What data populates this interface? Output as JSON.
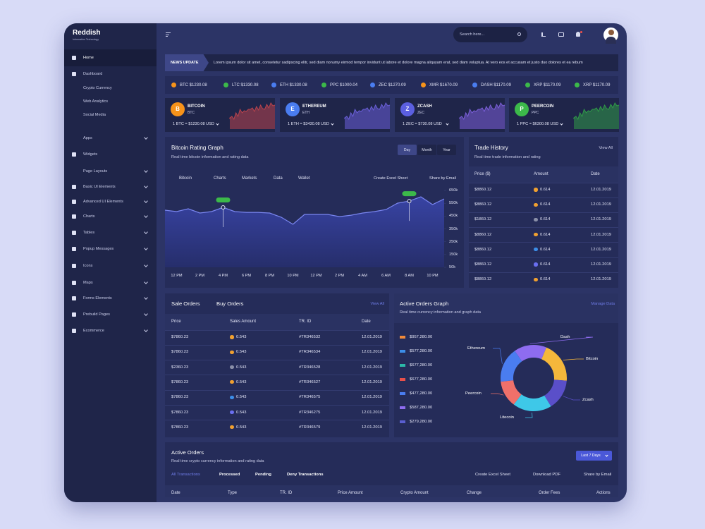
{
  "sidebar": {
    "brand": "Reddish",
    "tagline": "Information Technology",
    "menu": [
      {
        "label": "Home",
        "icon": true,
        "submenu": false,
        "active": true
      },
      {
        "label": "Dashboard",
        "icon": true,
        "submenu": false,
        "active": false
      },
      {
        "label": "Crypto Currency",
        "icon": false,
        "submenu": false,
        "active": false
      },
      {
        "label": "Web Analytics",
        "icon": false,
        "submenu": false,
        "active": false
      },
      {
        "label": "Social Media",
        "icon": false,
        "submenu": false,
        "active": false
      },
      {
        "label": "Apps",
        "icon": false,
        "submenu": true,
        "active": false
      },
      {
        "label": "Widgets",
        "icon": true,
        "submenu": false,
        "active": false
      },
      {
        "label": "Page Layouts",
        "icon": false,
        "submenu": true,
        "active": false
      },
      {
        "label": "Basic UI Elements",
        "icon": true,
        "submenu": true,
        "active": false
      },
      {
        "label": "Advanced UI Elements",
        "icon": true,
        "submenu": true,
        "active": false
      },
      {
        "label": "Charts",
        "icon": true,
        "submenu": true,
        "active": false
      },
      {
        "label": "Tables",
        "icon": true,
        "submenu": true,
        "active": false
      },
      {
        "label": "Popup Messages",
        "icon": true,
        "submenu": true,
        "active": false
      },
      {
        "label": "Icons",
        "icon": true,
        "submenu": true,
        "active": false
      },
      {
        "label": "Maps",
        "icon": true,
        "submenu": true,
        "active": false
      },
      {
        "label": "Forms Elements",
        "icon": true,
        "submenu": true,
        "active": false
      },
      {
        "label": "Prebuild Pages",
        "icon": true,
        "submenu": true,
        "active": false
      },
      {
        "label": "Ecommerce",
        "icon": true,
        "submenu": true,
        "active": false
      }
    ]
  },
  "topbar": {
    "search_placeholder": "Search here..."
  },
  "news": {
    "label": "NEWS UPDATE",
    "text": "Lorem ipsum dolor sit amet, consetetur sadipscing elitr, sed diam nonumy eirmod tempor invidunt ut labore et dolore magna aliquyam erat, sed diam voluptua. At vero eos et accusam et justo duo dolores et ea rebum"
  },
  "ticker": [
    {
      "text": "BTC $1230.08",
      "color": "#f7931a"
    },
    {
      "text": "LTC $1330.08",
      "color": "#3cb94a"
    },
    {
      "text": "ETH $1330.08",
      "color": "#4a7df0"
    },
    {
      "text": "PPC $1000.04",
      "color": "#3cb94a"
    },
    {
      "text": "ZEC $1270.09",
      "color": "#4a7df0"
    },
    {
      "text": "XMR $1670.09",
      "color": "#f7931a"
    },
    {
      "text": "DASH $1170.09",
      "color": "#4a7df0"
    },
    {
      "text": "XRP $1170.09",
      "color": "#3cb94a"
    },
    {
      "text": "XRP $1170.09",
      "color": "#3cb94a"
    }
  ],
  "coins": [
    {
      "icon": "B",
      "name": "BITCOIN",
      "code": "BTC",
      "rate": "1 BTC = $1230.08 USD",
      "color": "#f7931a",
      "spark": "#b8434c"
    },
    {
      "icon": "E",
      "name": "ETHEREUM",
      "code": "ETH",
      "rate": "1 ETH = $3430.08 USD",
      "color": "#4a7df0",
      "spark": "#6a5fd8"
    },
    {
      "icon": "Z",
      "name": "ZCASH",
      "code": "ZEC",
      "rate": "1 ZEC = $730.08 USD",
      "color": "#5b5fe0",
      "spark": "#7b5fd8"
    },
    {
      "icon": "P",
      "name": "PEERCOIN",
      "code": "PPC",
      "rate": "1 PPC = $6300.08 USD",
      "color": "#3cb94a",
      "spark": "#2f9a47"
    }
  ],
  "rating_panel": {
    "title": "Bitcoin Rating Graph",
    "subtitle": "Real time bitcoin information and rating data",
    "ranges": [
      "Day",
      "Month",
      "Year"
    ],
    "tabs": [
      "Bitcoin",
      "Charts",
      "Markets",
      "Data",
      "Wallet"
    ],
    "actions": [
      "Create Excel Sheet",
      "Share by Email"
    ]
  },
  "trade_history": {
    "title": "Trade History",
    "subtitle": "Real time trade information and rating",
    "link": "View All",
    "columns": [
      "Price ($)",
      "Amount",
      "Date"
    ],
    "rows": [
      {
        "price": "$8860.12",
        "amount": "0.614",
        "date": "12.01.2019",
        "dot": "#f0a030"
      },
      {
        "price": "$8860.12",
        "amount": "0.614",
        "date": "12.01.2019",
        "dot": "#f0a030"
      },
      {
        "price": "$1860.12",
        "amount": "0.614",
        "date": "12.01.2019",
        "dot": "#8a8fa8"
      },
      {
        "price": "$8860.12",
        "amount": "0.614",
        "date": "12.01.2019",
        "dot": "#f0a030"
      },
      {
        "price": "$8860.12",
        "amount": "0.614",
        "date": "12.01.2019",
        "dot": "#3c8ee8"
      },
      {
        "price": "$8860.12",
        "amount": "0.614",
        "date": "12.01.2019",
        "dot": "#6a6ff0"
      },
      {
        "price": "$8860.12",
        "amount": "0.614",
        "date": "12.01.2019",
        "dot": "#f0a030"
      }
    ]
  },
  "orders": {
    "tabs": [
      "Sale Orders",
      "Buy Orders"
    ],
    "link": "View All",
    "columns": [
      "Price",
      "Sales Amount",
      "TR. ID",
      "Date"
    ],
    "rows": [
      {
        "price": "$7860.23",
        "amount": "0.543",
        "id": "#TR346532",
        "date": "12.01.2019",
        "dot": "#f0a030"
      },
      {
        "price": "$7860.23",
        "amount": "0.543",
        "id": "#TR346534",
        "date": "12.01.2019",
        "dot": "#f0a030"
      },
      {
        "price": "$2360.23",
        "amount": "0.543",
        "id": "#TR346528",
        "date": "12.01.2019",
        "dot": "#8a8fa8"
      },
      {
        "price": "$7860.23",
        "amount": "0.543",
        "id": "#TR346527",
        "date": "12.01.2019",
        "dot": "#f0a030"
      },
      {
        "price": "$7860.23",
        "amount": "0.543",
        "id": "#TR346575",
        "date": "12.01.2019",
        "dot": "#3c8ee8"
      },
      {
        "price": "$7860.23",
        "amount": "0.543",
        "id": "#TR346275",
        "date": "12.01.2019",
        "dot": "#6a6ff0"
      },
      {
        "price": "$7860.23",
        "amount": "0.543",
        "id": "#TR346579",
        "date": "12.01.2019",
        "dot": "#f0a030"
      }
    ]
  },
  "orders_graph_panel": {
    "title": "Active Orders Graph",
    "subtitle": "Real time currency information and graph data",
    "link": "Manage Data",
    "legend": [
      {
        "amount": "$957,280.00",
        "color": "#f08a3a"
      },
      {
        "amount": "$577,280.00",
        "color": "#3c8ee8"
      },
      {
        "amount": "$677,280.00",
        "color": "#2cb8a8"
      },
      {
        "amount": "$677,280.00",
        "color": "#e8504a"
      },
      {
        "amount": "$477,280.00",
        "color": "#4a7df0"
      },
      {
        "amount": "$587,280.00",
        "color": "#8e6cf0"
      },
      {
        "amount": "$279,280.00",
        "color": "#5a5fd0"
      }
    ]
  },
  "active_orders": {
    "title": "Active Orders",
    "subtitle": "Real time crypto currency information and rating data",
    "button": "Last 7 Days",
    "tabs": [
      "All Transactions",
      "Processed",
      "Pending",
      "Deny Transactions"
    ],
    "actions": [
      "Create Excel Sheet",
      "Download PDF",
      "Share by Email"
    ],
    "columns": [
      "Date",
      "Type",
      "TR. ID",
      "Price Amount",
      "Crypto Amount",
      "Change",
      "Order Fees",
      "Actions"
    ]
  },
  "chart_data": [
    {
      "type": "line",
      "categories": [
        null,
        "12 PM",
        null,
        "2 PM",
        null,
        "4 PM",
        null,
        "6 PM",
        null,
        "8 PM",
        null,
        "10 PM",
        null,
        "12 PM",
        null,
        "2 PM",
        null,
        "4 AM",
        null,
        "6 AM",
        null,
        "8 AM",
        null,
        "10 PM",
        null
      ],
      "values": [
        496000,
        485000,
        507000,
        474000,
        485000,
        518000,
        485000,
        479000,
        479000,
        474000,
        441000,
        386000,
        463000,
        463000,
        463000,
        446000,
        457000,
        474000,
        485000,
        501000,
        551000,
        567000,
        600000,
        540000,
        584000
      ],
      "color": "#7a86f0",
      "ylim": [
        50000,
        650000
      ],
      "yticks": [
        {
          "value": 650000,
          "label": "650k"
        },
        {
          "value": 550000,
          "label": "550k"
        },
        {
          "value": 450000,
          "label": "450k"
        },
        {
          "value": 350000,
          "label": "350k"
        },
        {
          "value": 250000,
          "label": "250k"
        },
        {
          "value": 150000,
          "label": "150k"
        },
        {
          "value": 50000,
          "label": "50k"
        }
      ]
    },
    {
      "type": "pie",
      "categories": [
        "Dash",
        "Bitcoin",
        "Zcash",
        "Litecoin",
        "Peercoin",
        "Ethereum"
      ],
      "values": [
        16,
        20,
        15,
        19,
        13,
        17
      ],
      "colors": [
        "#8e6cf0",
        "#f5b73b",
        "#5a4fc9",
        "#3ec8e8",
        "#f0706a",
        "#4a7df0"
      ]
    }
  ]
}
